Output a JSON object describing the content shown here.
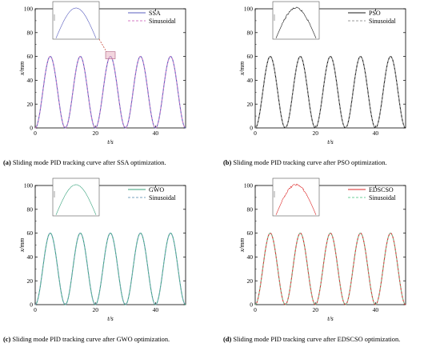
{
  "chart_data": [
    {
      "type": "line",
      "xlabel": "t/s",
      "ylabel": "x/mm",
      "xlim": [
        0,
        50
      ],
      "ylim": [
        0,
        100
      ],
      "x_ticks": [
        "0",
        "20",
        "40"
      ],
      "y_ticks": [
        "0",
        "20",
        "40",
        "60",
        "80",
        "100"
      ],
      "legend_position": "top-right",
      "inset": true,
      "inset_noise": "low",
      "zoom_marker": true,
      "series": [
        {
          "name": "SSA",
          "color": "#5a5fbf",
          "style": "solid",
          "amplitude": 60,
          "period": 10,
          "x_range": [
            0,
            50
          ]
        },
        {
          "name": "Sinusoidal",
          "color": "#d67bc6",
          "style": "dashed",
          "amplitude": 60,
          "period": 10,
          "x_range": [
            0,
            50
          ]
        }
      ],
      "caption_tag": "(a)",
      "caption": " Sliding mode PID tracking curve after SSA optimization."
    },
    {
      "type": "line",
      "xlabel": "t/s",
      "ylabel": "x/mm",
      "xlim": [
        0,
        50
      ],
      "ylim": [
        0,
        100
      ],
      "x_ticks": [
        "0",
        "20",
        "40"
      ],
      "y_ticks": [
        "0",
        "20",
        "40",
        "60",
        "80",
        "100"
      ],
      "legend_position": "top-right",
      "inset": true,
      "inset_noise": "high",
      "zoom_marker": false,
      "series": [
        {
          "name": "PSO",
          "color": "#1a1a1a",
          "style": "solid",
          "amplitude": 60,
          "period": 10,
          "x_range": [
            0,
            50
          ]
        },
        {
          "name": "Sinusoidal",
          "color": "#9a9a9a",
          "style": "dashed",
          "amplitude": 60,
          "period": 10,
          "x_range": [
            0,
            50
          ]
        }
      ],
      "caption_tag": "(b)",
      "caption": " Sliding mode PID tracking curve after PSO optimization."
    },
    {
      "type": "line",
      "xlabel": "t/s",
      "ylabel": "x/mm",
      "xlim": [
        0,
        50
      ],
      "ylim": [
        0,
        100
      ],
      "x_ticks": [
        "0",
        "20",
        "40"
      ],
      "y_ticks": [
        "0",
        "20",
        "40",
        "60",
        "80",
        "100"
      ],
      "legend_position": "top-right",
      "inset": true,
      "inset_noise": "low",
      "zoom_marker": false,
      "series": [
        {
          "name": "GWO",
          "color": "#3aa47e",
          "style": "solid",
          "amplitude": 60,
          "period": 10,
          "x_range": [
            0,
            50
          ]
        },
        {
          "name": "Sinusoidal",
          "color": "#7aa3bf",
          "style": "dashed",
          "amplitude": 60,
          "period": 10,
          "x_range": [
            0,
            50
          ]
        }
      ],
      "caption_tag": "(c)",
      "caption": " Sliding mode PID tracking curve after GWO optimization."
    },
    {
      "type": "line",
      "xlabel": "t/s",
      "ylabel": "x/mm",
      "xlim": [
        0,
        50
      ],
      "ylim": [
        0,
        100
      ],
      "x_ticks": [
        "0",
        "20",
        "40"
      ],
      "y_ticks": [
        "0",
        "20",
        "40",
        "60",
        "80",
        "100"
      ],
      "legend_position": "top-right",
      "inset": true,
      "inset_noise": "high",
      "zoom_marker": false,
      "series": [
        {
          "name": "EDSCSO",
          "color": "#dd2a2a",
          "style": "solid",
          "amplitude": 60,
          "period": 10,
          "x_range": [
            0,
            50
          ]
        },
        {
          "name": "Sinusoidal",
          "color": "#6ecf9a",
          "style": "dashed",
          "amplitude": 60,
          "period": 10,
          "x_range": [
            0,
            50
          ]
        }
      ],
      "caption_tag": "(d)",
      "caption": " Sliding mode PID tracking curve after EDSCSO optimization."
    }
  ]
}
